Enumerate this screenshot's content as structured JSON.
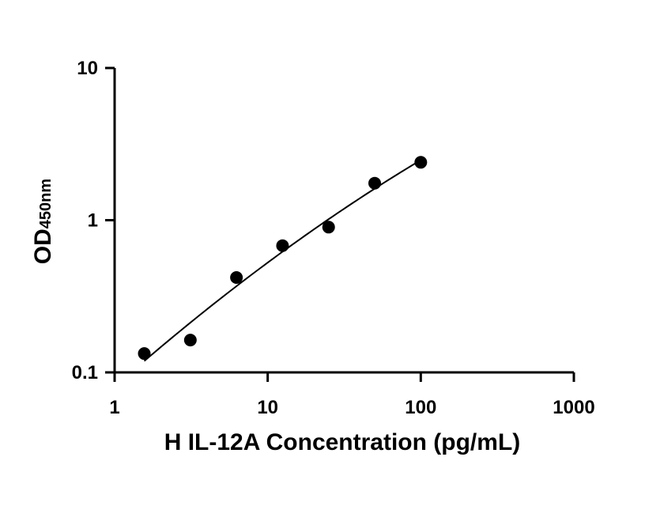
{
  "chart_data": {
    "type": "scatter",
    "xlabel": "H IL-12A Concentration (pg/mL)",
    "ylabel": {
      "main": "OD",
      "subscript": "450nm"
    },
    "x_scale": "log",
    "y_scale": "log",
    "xlim": [
      1,
      1000
    ],
    "ylim": [
      0.1,
      10
    ],
    "x_ticks": [
      "1",
      "10",
      "100",
      "1000"
    ],
    "y_ticks": [
      "0.1",
      "1",
      "10"
    ],
    "grid": false,
    "legend": "none",
    "series": [
      {
        "x": [
          1.5625,
          3.125,
          6.25,
          12.5,
          25,
          50,
          100
        ],
        "y": [
          0.133,
          0.163,
          0.42,
          0.68,
          0.9,
          1.75,
          2.4
        ]
      }
    ],
    "fit_curve": {
      "x_range": [
        1.5625,
        100
      ]
    },
    "colors": {
      "points": "#000000",
      "curve": "#000000",
      "axes": "#000000"
    }
  }
}
